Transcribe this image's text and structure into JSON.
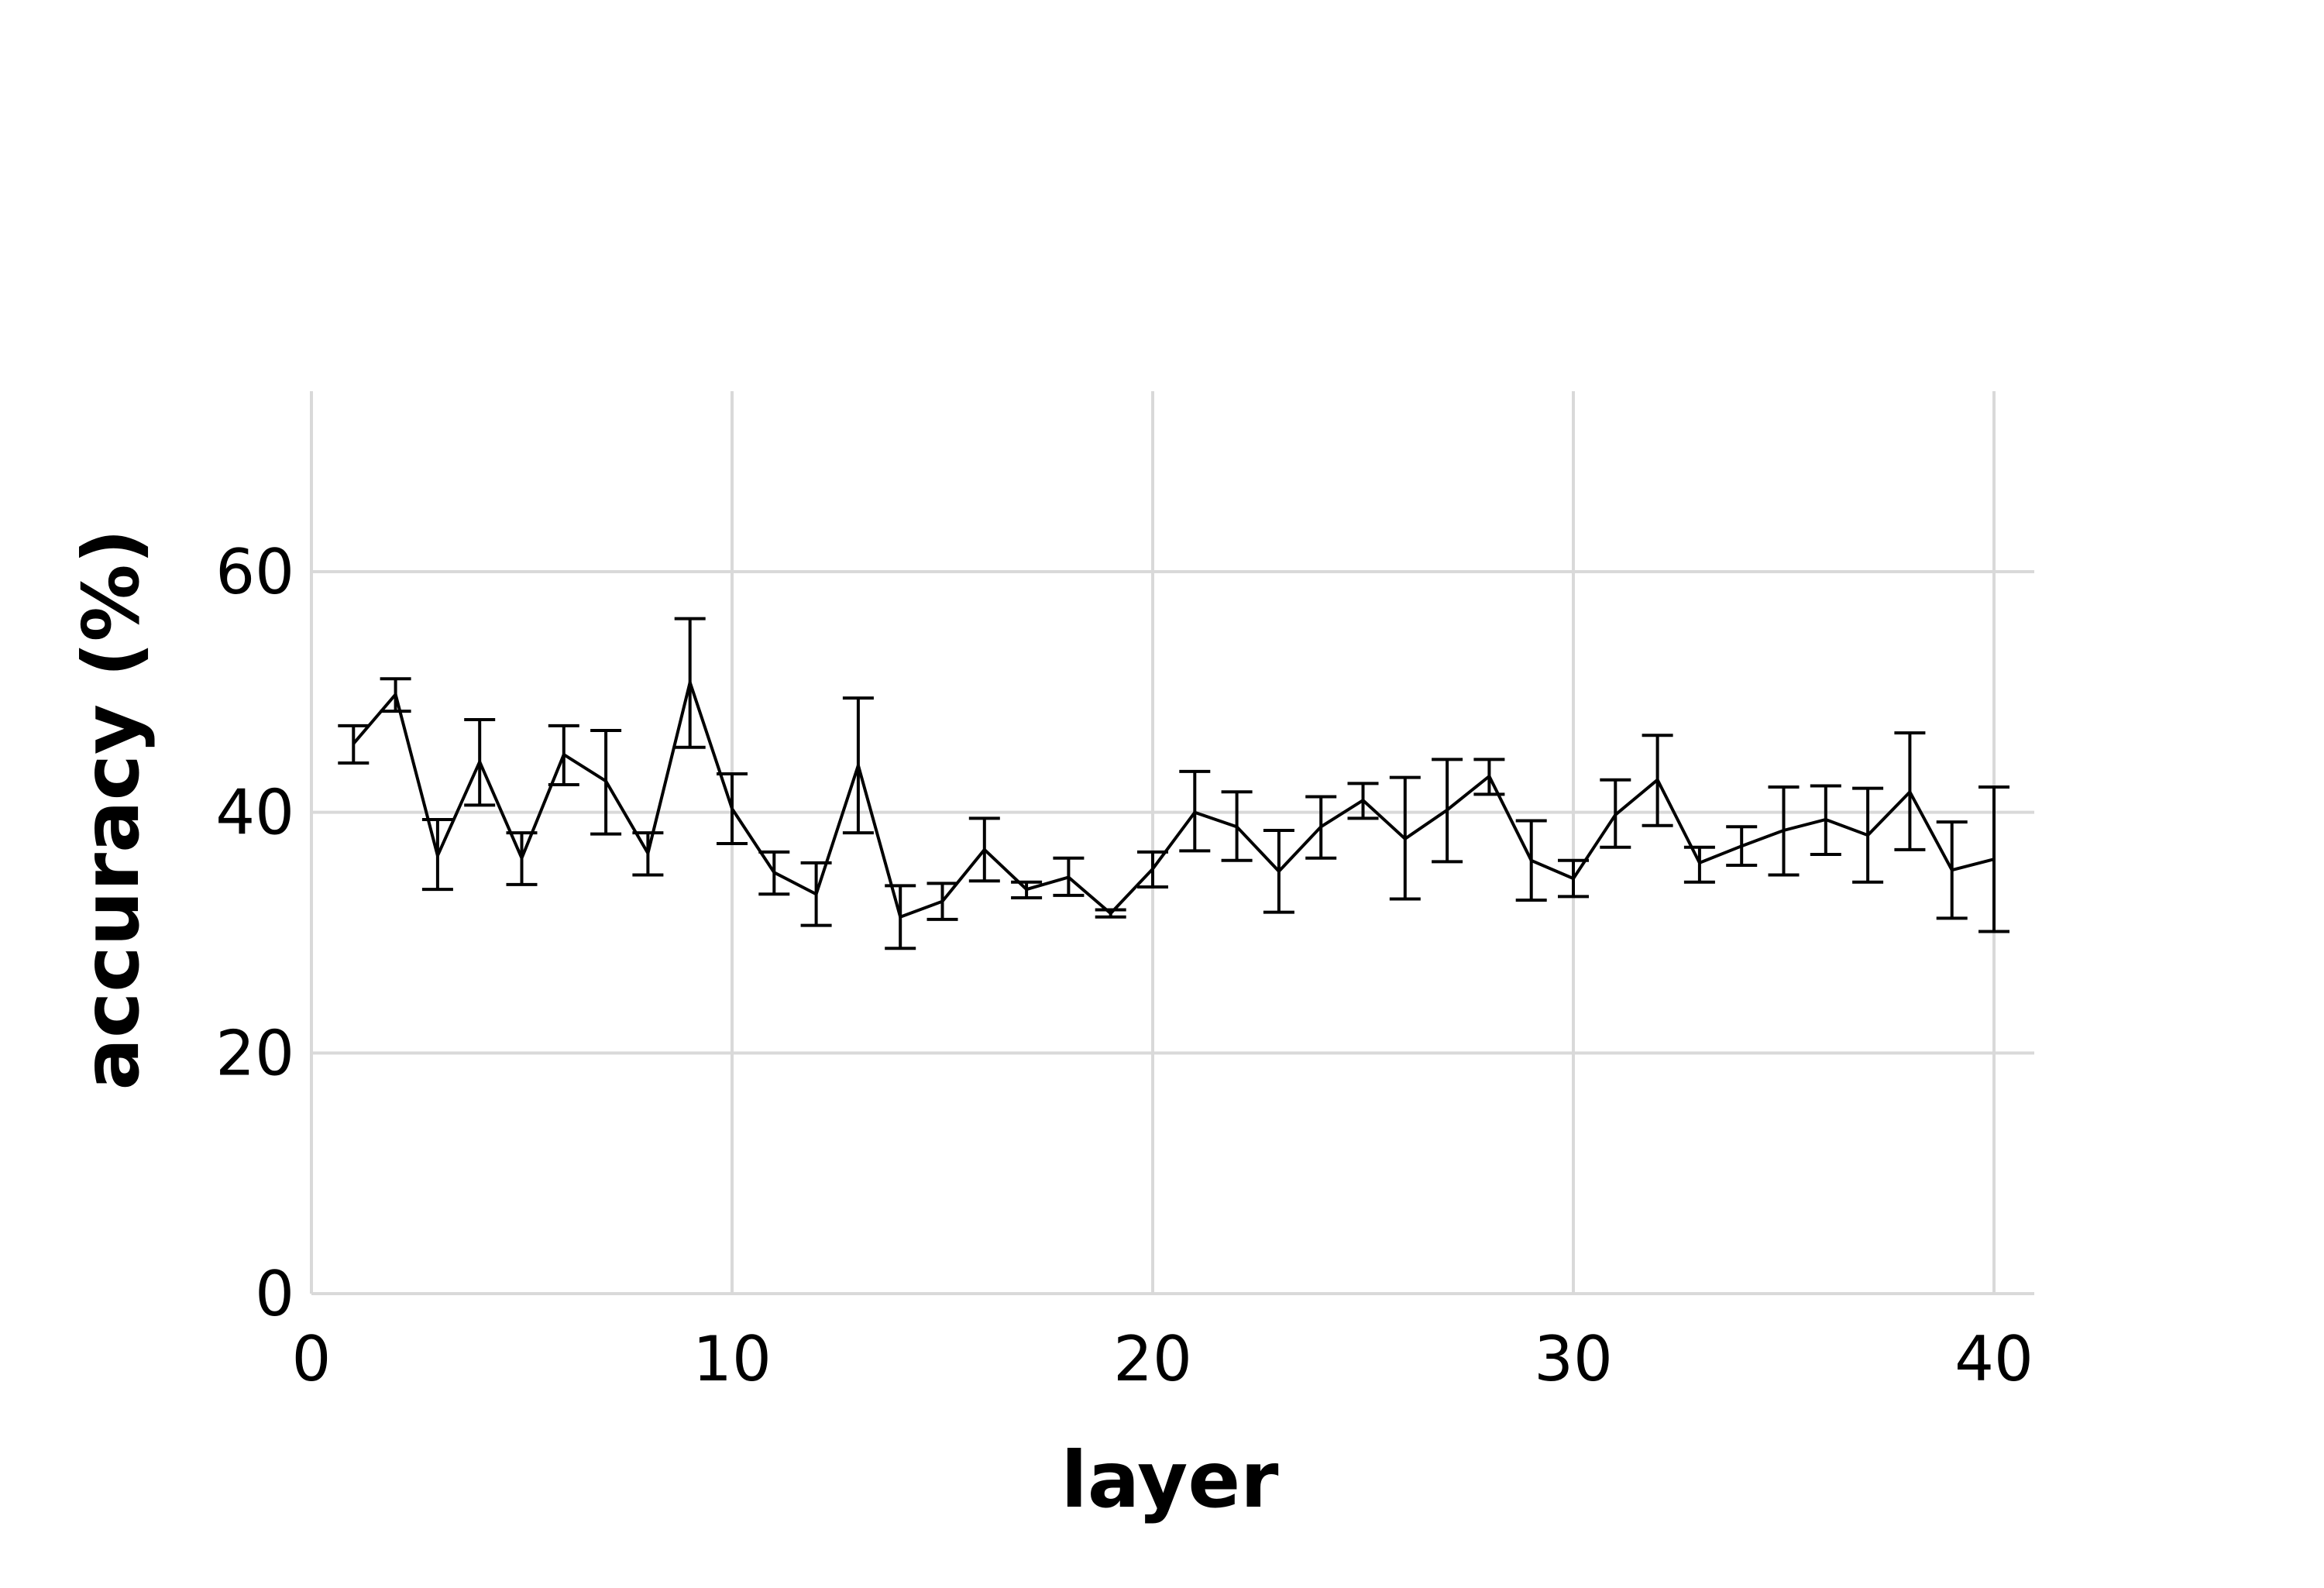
{
  "chart_data": {
    "type": "line",
    "title": "",
    "xlabel": "layer",
    "ylabel": "accuracy (%)",
    "xlim": [
      0,
      40
    ],
    "ylim": [
      0,
      75
    ],
    "x_ticks": [
      0,
      10,
      20,
      30,
      40
    ],
    "y_ticks": [
      0,
      20,
      40,
      60
    ],
    "grid": true,
    "series": [
      {
        "color": "#000000",
        "x": [
          1,
          2,
          3,
          4,
          5,
          6,
          7,
          8,
          9,
          10,
          11,
          12,
          13,
          14,
          15,
          16,
          17,
          18,
          19,
          20,
          21,
          22,
          23,
          24,
          25,
          26,
          27,
          28,
          29,
          30,
          31,
          32,
          33,
          34,
          35,
          36,
          37,
          38,
          39,
          40
        ],
        "y": [
          45.7,
          49.8,
          36.4,
          44.2,
          36.2,
          44.8,
          42.6,
          36.6,
          50.8,
          40.3,
          35.0,
          33.2,
          43.9,
          31.3,
          32.6,
          36.9,
          33.6,
          34.6,
          31.6,
          35.3,
          40.0,
          38.8,
          35.1,
          38.8,
          41.0,
          37.8,
          40.2,
          43.0,
          36.0,
          34.5,
          39.8,
          42.7,
          35.8,
          37.2,
          38.5,
          39.4,
          38.1,
          41.7,
          35.2,
          36.1
        ],
        "err_low": [
          44.1,
          48.4,
          33.6,
          40.6,
          34.0,
          42.3,
          38.2,
          34.8,
          45.4,
          37.4,
          33.2,
          30.6,
          38.3,
          28.7,
          31.1,
          34.3,
          32.9,
          33.1,
          31.3,
          33.8,
          36.8,
          36.0,
          31.7,
          36.2,
          39.5,
          32.8,
          35.9,
          41.5,
          32.7,
          33.0,
          37.1,
          38.9,
          34.2,
          35.6,
          34.8,
          36.5,
          34.2,
          36.9,
          31.2,
          30.1
        ],
        "err_high": [
          47.2,
          51.1,
          39.4,
          47.7,
          38.3,
          47.2,
          46.8,
          38.3,
          56.1,
          43.2,
          36.7,
          35.8,
          49.5,
          33.9,
          34.1,
          39.5,
          34.2,
          36.2,
          31.9,
          36.7,
          43.4,
          41.7,
          38.5,
          41.3,
          42.4,
          42.9,
          44.4,
          44.4,
          39.3,
          36.0,
          42.7,
          46.4,
          37.1,
          38.8,
          42.1,
          42.2,
          42.0,
          46.6,
          39.2,
          42.1
        ]
      }
    ]
  }
}
